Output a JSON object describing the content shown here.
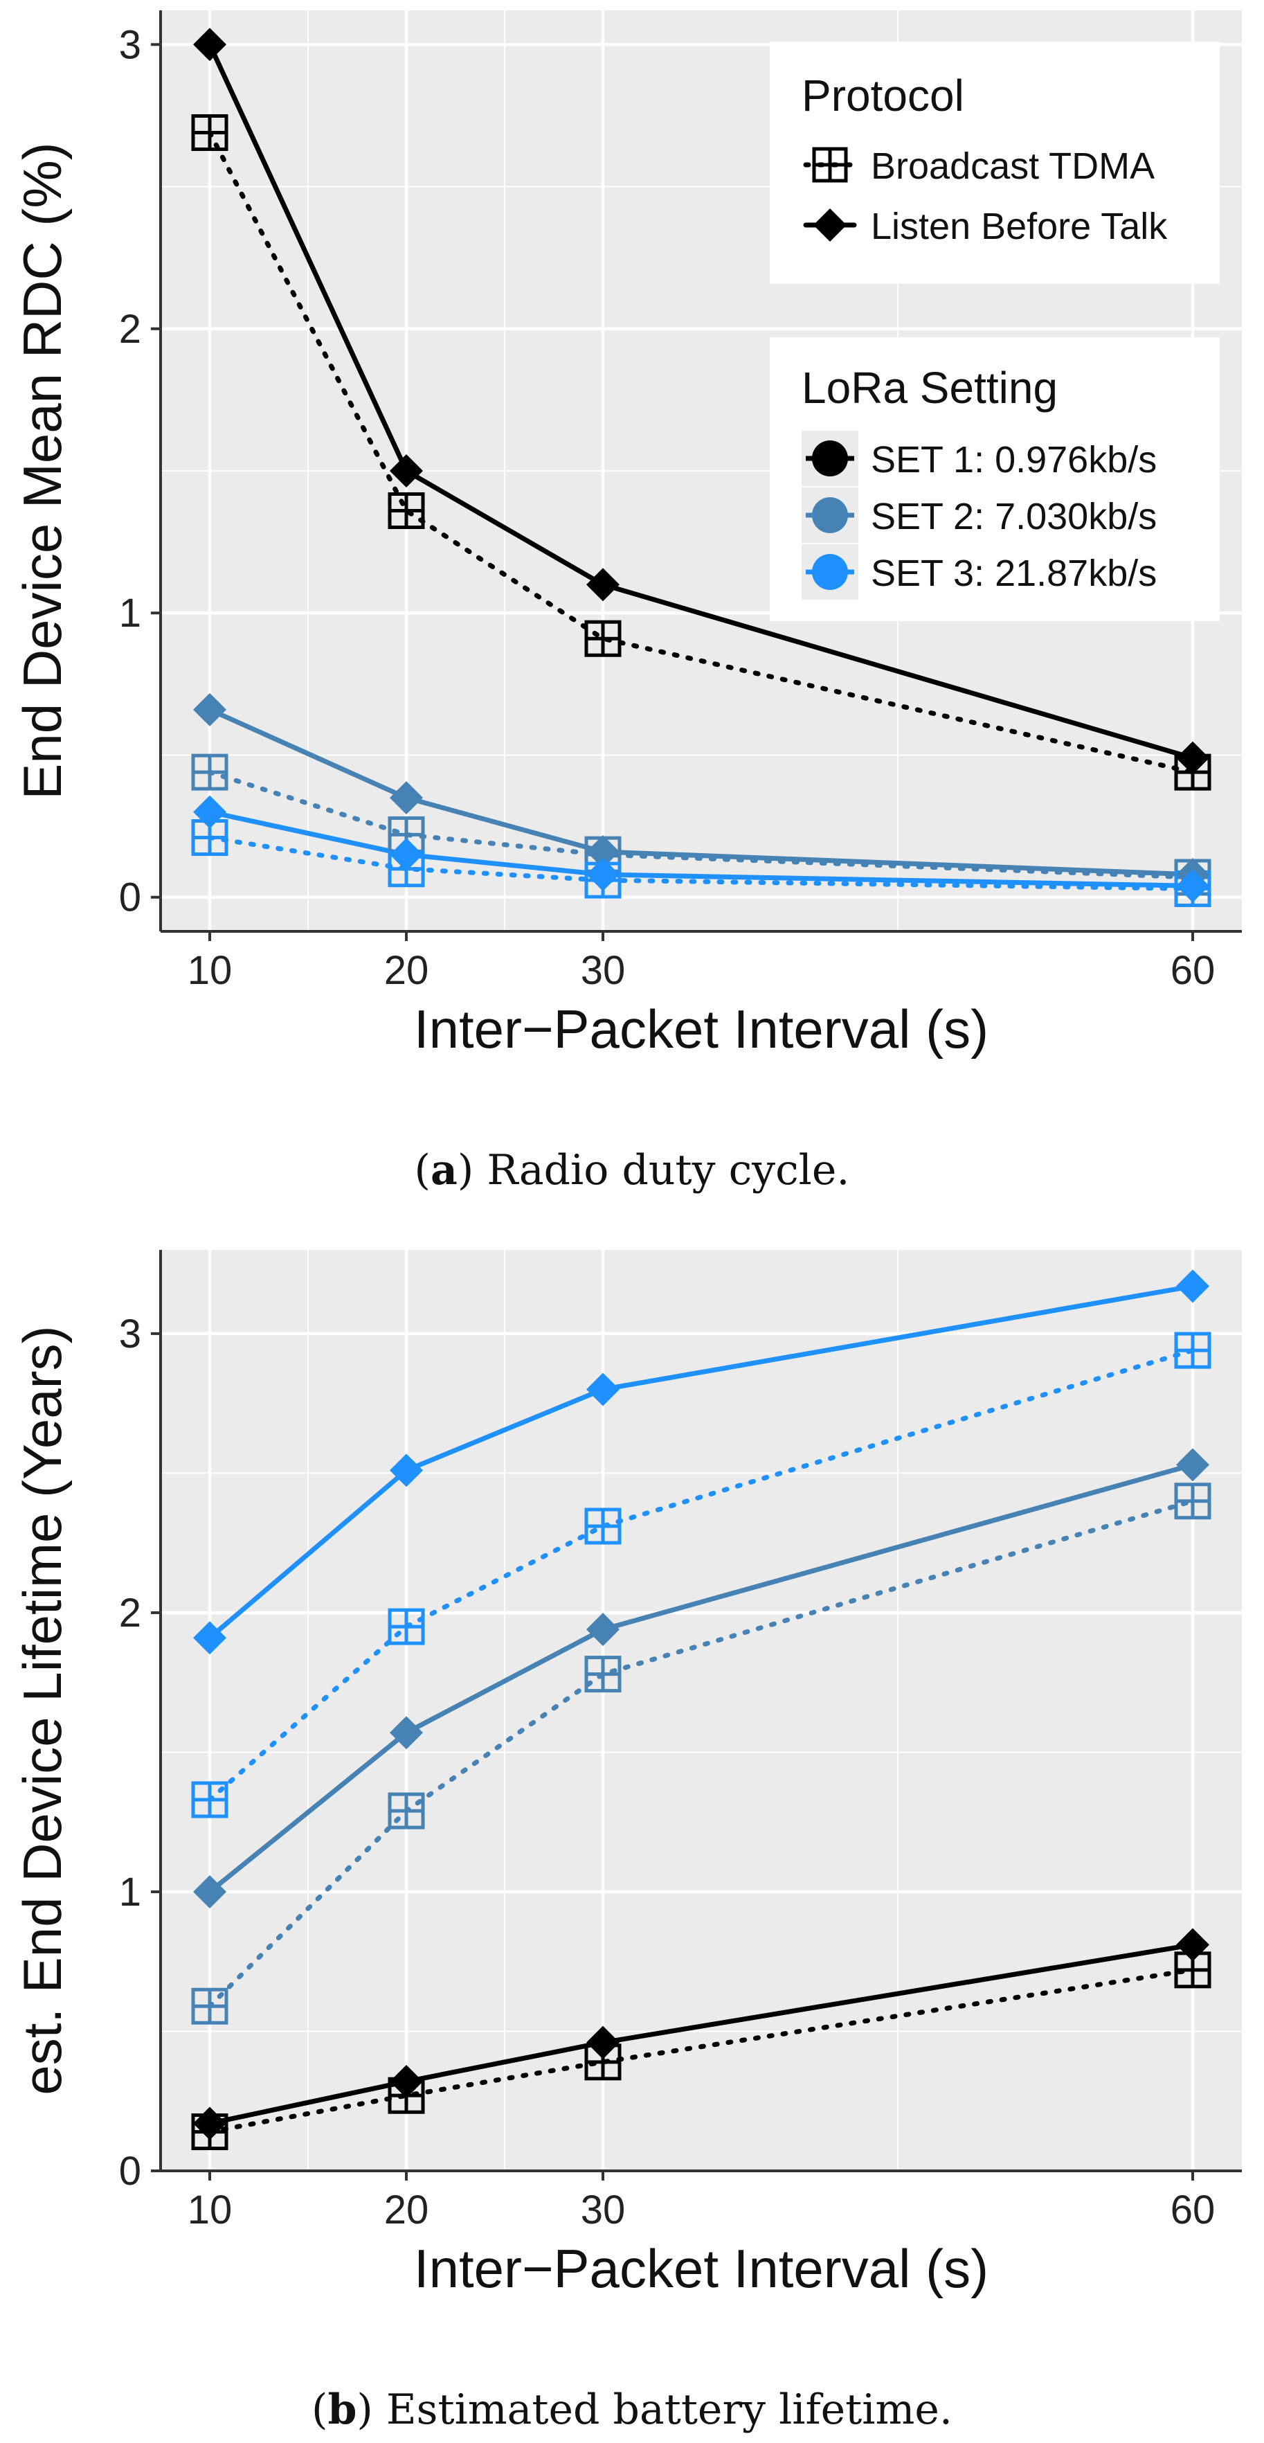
{
  "figure": {
    "caption_a": {
      "label": "a",
      "text": "Radio duty cycle."
    },
    "caption_b": {
      "label": "b",
      "text": "Estimated battery lifetime."
    }
  },
  "legend": {
    "protocol_title": "Protocol",
    "protocol_items": [
      "Broadcast TDMA",
      "Listen Before Talk"
    ],
    "setting_title": "LoRa Setting",
    "setting_items": [
      "SET 1: 0.976kb/s",
      "SET 2: 7.030kb/s",
      "SET 3: 21.87kb/s"
    ]
  },
  "colors": {
    "set1": "#000000",
    "set2": "#4682b4",
    "set3": "#1e90ff",
    "panel_bg": "#ebebeb",
    "grid": "#ffffff"
  },
  "chart_data": [
    {
      "type": "line",
      "title": "",
      "xlabel": "Inter−Packet Interval (s)",
      "ylabel": "End Device Mean RDC (%)",
      "x": [
        10,
        20,
        30,
        60
      ],
      "x_ticks": [
        "10",
        "20",
        "30",
        "60"
      ],
      "y_ticks": [
        "0",
        "1",
        "2",
        "3"
      ],
      "xlim": [
        7.5,
        62.5
      ],
      "ylim": [
        -0.12,
        3.12
      ],
      "series": [
        {
          "name": "SET 1 Listen Before Talk",
          "setting": "set1",
          "protocol": "lbt",
          "values": [
            3.0,
            1.5,
            1.1,
            0.49
          ]
        },
        {
          "name": "SET 1 Broadcast TDMA",
          "setting": "set1",
          "protocol": "tdma",
          "values": [
            2.69,
            1.36,
            0.91,
            0.44
          ]
        },
        {
          "name": "SET 2 Listen Before Talk",
          "setting": "set2",
          "protocol": "lbt",
          "values": [
            0.66,
            0.35,
            0.16,
            0.08
          ]
        },
        {
          "name": "SET 2 Broadcast TDMA",
          "setting": "set2",
          "protocol": "tdma",
          "values": [
            0.44,
            0.22,
            0.15,
            0.07
          ]
        },
        {
          "name": "SET 3 Listen Before Talk",
          "setting": "set3",
          "protocol": "lbt",
          "values": [
            0.3,
            0.15,
            0.08,
            0.04
          ]
        },
        {
          "name": "SET 3 Broadcast TDMA",
          "setting": "set3",
          "protocol": "tdma",
          "values": [
            0.21,
            0.1,
            0.06,
            0.03
          ]
        }
      ]
    },
    {
      "type": "line",
      "title": "",
      "xlabel": "Inter−Packet Interval (s)",
      "ylabel": "est. End Device Lifetime (Years)",
      "x": [
        10,
        20,
        30,
        60
      ],
      "x_ticks": [
        "10",
        "20",
        "30",
        "60"
      ],
      "y_ticks": [
        "0",
        "1",
        "2",
        "3"
      ],
      "xlim": [
        7.5,
        62.5
      ],
      "ylim": [
        0,
        3.3
      ],
      "series": [
        {
          "name": "SET 3 Listen Before Talk",
          "setting": "set3",
          "protocol": "lbt",
          "values": [
            1.91,
            2.51,
            2.8,
            3.17
          ]
        },
        {
          "name": "SET 3 Broadcast TDMA",
          "setting": "set3",
          "protocol": "tdma",
          "values": [
            1.33,
            1.95,
            2.31,
            2.94
          ]
        },
        {
          "name": "SET 2 Listen Before Talk",
          "setting": "set2",
          "protocol": "lbt",
          "values": [
            1.0,
            1.57,
            1.94,
            2.53
          ]
        },
        {
          "name": "SET 2 Broadcast TDMA",
          "setting": "set2",
          "protocol": "tdma",
          "values": [
            0.59,
            1.29,
            1.78,
            2.4
          ]
        },
        {
          "name": "SET 1 Listen Before Talk",
          "setting": "set1",
          "protocol": "lbt",
          "values": [
            0.17,
            0.32,
            0.46,
            0.81
          ]
        },
        {
          "name": "SET 1 Broadcast TDMA",
          "setting": "set1",
          "protocol": "tdma",
          "values": [
            0.14,
            0.27,
            0.39,
            0.72
          ]
        }
      ]
    }
  ]
}
